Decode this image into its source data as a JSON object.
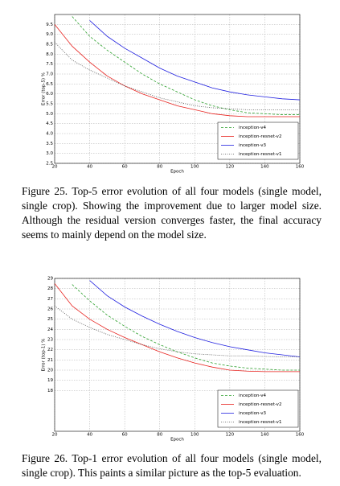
{
  "chart_data": [
    {
      "type": "line",
      "xlabel": "Epoch",
      "ylabel": "Error (top-5) %",
      "x": [
        20,
        30,
        40,
        50,
        60,
        70,
        80,
        90,
        100,
        110,
        120,
        130,
        140,
        150,
        160
      ],
      "xlim": [
        20,
        160
      ],
      "xticks": [
        20,
        40,
        60,
        80,
        100,
        120,
        140,
        160
      ],
      "ylim": [
        2.5,
        10
      ],
      "yticks": [
        2.5,
        {
          "value": 3,
          "label": "3.0"
        },
        3.5,
        {
          "value": 4,
          "label": "4.0"
        },
        4.5,
        {
          "value": 5,
          "label": "5.0"
        },
        5.5,
        {
          "value": 6,
          "label": "6.0"
        },
        6.5,
        {
          "value": 7,
          "label": "7.0"
        },
        7.5,
        {
          "value": 8,
          "label": "8.0"
        },
        8.5,
        {
          "value": 9,
          "label": "9.0"
        },
        9.5
      ],
      "grid": true,
      "legend": "lower right",
      "series": [
        {
          "name": "inception-v4",
          "color": "#2ca02c",
          "style": "dashed",
          "values": [
            null,
            9.9,
            8.9,
            8.2,
            7.6,
            7.0,
            6.5,
            6.1,
            5.7,
            5.4,
            5.2,
            5.05,
            5.0,
            4.95,
            4.95
          ]
        },
        {
          "name": "inception-resnet-v2",
          "color": "#e8231f",
          "style": "solid",
          "values": [
            9.5,
            8.4,
            7.6,
            6.9,
            6.4,
            6.0,
            5.7,
            5.4,
            5.2,
            5.0,
            4.9,
            4.85,
            4.85,
            4.85,
            4.85
          ]
        },
        {
          "name": "inception-v3",
          "color": "#2020e0",
          "style": "solid",
          "values": [
            null,
            null,
            9.7,
            8.9,
            8.3,
            7.8,
            7.3,
            6.9,
            6.6,
            6.3,
            6.1,
            5.95,
            5.85,
            5.75,
            5.7
          ]
        },
        {
          "name": "inception-resnet-v1",
          "color": "#555555",
          "style": "dotted",
          "values": [
            8.6,
            7.7,
            7.2,
            6.8,
            6.4,
            6.1,
            5.8,
            5.6,
            5.4,
            5.3,
            5.25,
            5.2,
            5.2,
            5.2,
            5.2
          ]
        }
      ]
    },
    {
      "type": "line",
      "xlabel": "Epoch",
      "ylabel": "Error (top-1) %",
      "x": [
        20,
        30,
        40,
        50,
        60,
        70,
        80,
        90,
        100,
        110,
        120,
        130,
        140,
        150,
        160
      ],
      "xlim": [
        20,
        160
      ],
      "xticks": [
        20,
        40,
        60,
        80,
        100,
        120,
        140,
        160
      ],
      "ylim": [
        14,
        29
      ],
      "yticks": [
        18,
        19,
        20,
        21,
        22,
        23,
        24,
        25,
        26,
        27,
        28,
        29
      ],
      "grid": true,
      "legend": "lower right",
      "series": [
        {
          "name": "inception-v4",
          "color": "#2ca02c",
          "style": "dashed",
          "values": [
            null,
            28.4,
            26.8,
            25.4,
            24.3,
            23.3,
            22.5,
            21.8,
            21.2,
            20.7,
            20.4,
            20.2,
            20.1,
            20.0,
            20.0
          ]
        },
        {
          "name": "inception-resnet-v2",
          "color": "#e8231f",
          "style": "solid",
          "values": [
            28.5,
            26.3,
            25.0,
            24.0,
            23.2,
            22.5,
            21.8,
            21.2,
            20.7,
            20.3,
            20.0,
            19.9,
            19.85,
            19.85,
            19.85
          ]
        },
        {
          "name": "inception-v3",
          "color": "#2020e0",
          "style": "solid",
          "values": [
            null,
            null,
            28.8,
            27.3,
            26.2,
            25.3,
            24.5,
            23.8,
            23.2,
            22.7,
            22.3,
            22.0,
            21.7,
            21.5,
            21.3
          ]
        },
        {
          "name": "inception-resnet-v1",
          "color": "#555555",
          "style": "dotted",
          "values": [
            26.3,
            25.0,
            24.2,
            23.5,
            23.0,
            22.5,
            22.1,
            21.8,
            21.6,
            21.5,
            21.4,
            21.4,
            21.35,
            21.3,
            21.3
          ]
        }
      ]
    }
  ],
  "captions": [
    "Figure 25. Top-5 error evolution of all four models (single model, single crop). Showing the improvement due to larger model size. Although the residual version converges faster, the final accuracy seems to mainly depend on the model size.",
    "Figure 26. Top-1 error evolution of all four models (single model, single crop). This paints a similar picture as the top-5 evaluation."
  ]
}
